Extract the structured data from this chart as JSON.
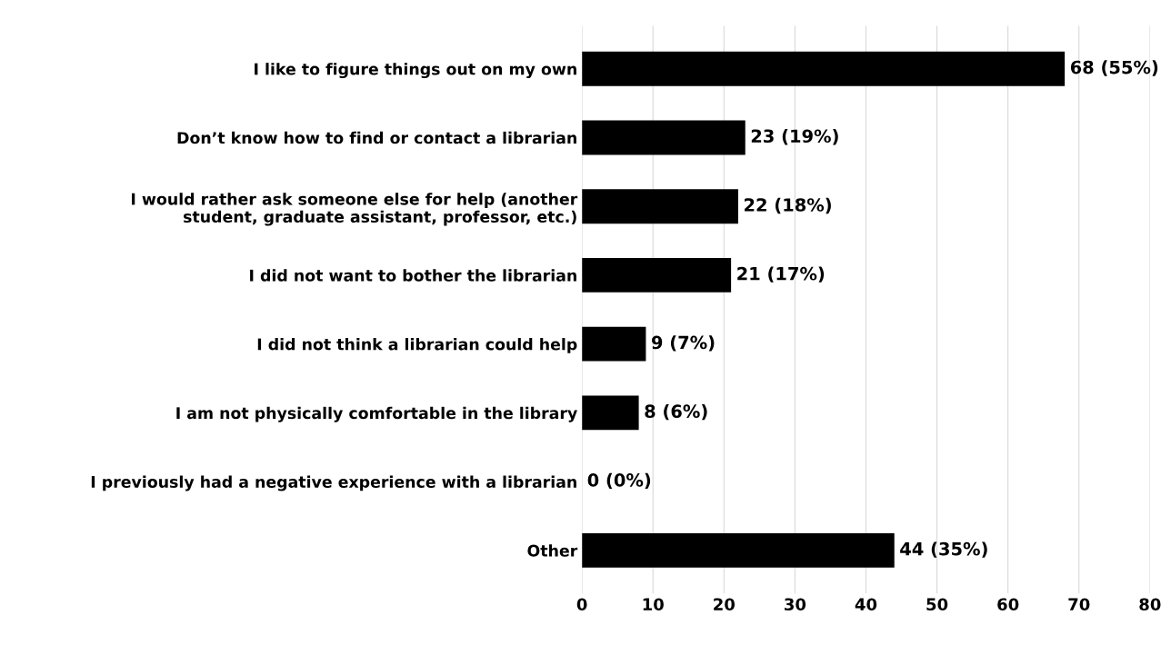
{
  "chart_data": {
    "type": "bar",
    "orientation": "horizontal",
    "categories": [
      "I like to figure things out on my own",
      "Don’t know how to find or contact a librarian",
      "I would rather ask someone else for help (another\nstudent, graduate assistant, professor, etc.)",
      "I did not want to bother the librarian",
      "I did not think a librarian could help",
      "I am not physically comfortable in the library",
      "I previously had a negative experience with a librarian",
      "Other"
    ],
    "values": [
      68,
      23,
      22,
      21,
      9,
      8,
      0,
      44
    ],
    "value_labels": [
      "68 (55%)",
      "23 (19%)",
      "22 (18%)",
      "21 (17%)",
      "9 (7%)",
      "8 (6%)",
      "0 (0%)",
      "44 (35%)"
    ],
    "color": "#000000",
    "xlim": [
      0,
      80
    ],
    "xticks": [
      0,
      10,
      20,
      30,
      40,
      50,
      60,
      70,
      80
    ],
    "grid": "x",
    "legend": false
  }
}
